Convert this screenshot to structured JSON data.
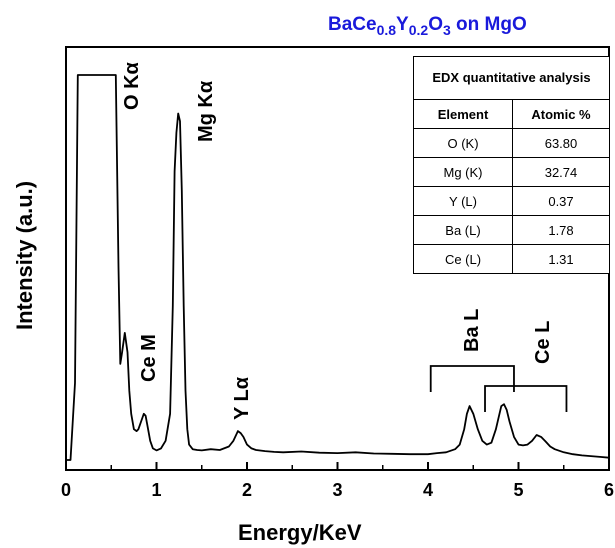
{
  "title_parts": {
    "t1": "BaCe",
    "s1": "0.8",
    "t2": "Y",
    "s2": "0.2",
    "t3": "O",
    "s3": "3",
    "t4": " on MgO"
  },
  "chart_data": {
    "type": "line",
    "title": "BaCe0.8Y0.2O3 on MgO",
    "xlabel": "Energy/KeV",
    "ylabel": "Intensity (a.u.)",
    "xlim": [
      0,
      6
    ],
    "ylim": [
      0,
      100
    ],
    "xticks": [
      "0",
      "1",
      "2",
      "3",
      "4",
      "5",
      "6"
    ],
    "yticks_shown": false,
    "grid": false,
    "series": [
      {
        "x": [
          0.0,
          0.05,
          0.1,
          0.13,
          0.15,
          0.17,
          0.2,
          0.25,
          0.3,
          0.35,
          0.4,
          0.45,
          0.48,
          0.5,
          0.52,
          0.55,
          0.58,
          0.6,
          0.62,
          0.65,
          0.68,
          0.7,
          0.72,
          0.75,
          0.78,
          0.8,
          0.83,
          0.86,
          0.88,
          0.9,
          0.93,
          0.96,
          1.0,
          1.05,
          1.1,
          1.15,
          1.18,
          1.2,
          1.22,
          1.24,
          1.26,
          1.28,
          1.3,
          1.32,
          1.34,
          1.36,
          1.4,
          1.45,
          1.5,
          1.6,
          1.7,
          1.8,
          1.85,
          1.9,
          1.93,
          1.96,
          2.0,
          2.05,
          2.1,
          2.2,
          2.3,
          2.4,
          2.6,
          2.8,
          3.0,
          3.2,
          3.4,
          3.6,
          3.8,
          4.0,
          4.1,
          4.2,
          4.3,
          4.35,
          4.4,
          4.43,
          4.46,
          4.5,
          4.55,
          4.6,
          4.65,
          4.7,
          4.75,
          4.78,
          4.81,
          4.84,
          4.87,
          4.9,
          4.95,
          5.0,
          5.05,
          5.1,
          5.15,
          5.2,
          5.25,
          5.3,
          5.35,
          5.4,
          5.5,
          5.6,
          5.7,
          5.8,
          5.9,
          6.0
        ],
        "y": [
          0,
          0,
          20,
          100,
          100,
          100,
          100,
          100,
          100,
          100,
          100,
          100,
          100,
          100,
          100,
          100,
          50,
          25,
          28,
          33,
          28,
          18,
          12,
          8,
          7.5,
          8,
          10,
          12,
          11.5,
          9,
          5,
          3,
          2.5,
          3,
          5,
          12,
          40,
          75,
          85,
          90,
          88,
          70,
          40,
          18,
          8,
          4,
          2.8,
          2.6,
          2.5,
          2.8,
          2.6,
          3.5,
          5,
          7.5,
          7,
          6,
          4,
          3,
          2.6,
          2.3,
          2.1,
          2.0,
          2.2,
          1.9,
          1.8,
          2.0,
          1.7,
          1.6,
          1.5,
          1.5,
          1.8,
          2.0,
          2.8,
          4,
          8,
          12,
          14,
          12,
          8,
          5,
          4,
          4.5,
          8,
          11,
          14,
          14.5,
          13,
          10,
          6,
          4,
          3.8,
          4,
          5,
          6.5,
          6,
          4.8,
          3.5,
          2.8,
          2.0,
          1.5,
          1.2,
          1.0,
          0.8,
          0.6
        ]
      }
    ],
    "annotations": [
      "O Kα",
      "Mg Kα",
      "Ce M",
      "Y Lα",
      "Ba L",
      "Ce L"
    ],
    "brackets": [
      {
        "label": "Ba L",
        "from": 4.03,
        "to": 4.95
      },
      {
        "label": "Ce L",
        "from": 4.63,
        "to": 5.53
      }
    ]
  },
  "table": {
    "caption": "EDX quantitative analysis",
    "headers": [
      "Element",
      "Atomic %"
    ],
    "rows": [
      {
        "element": "O (K)",
        "value": "63.80"
      },
      {
        "element": "Mg (K)",
        "value": "32.74"
      },
      {
        "element": "Y (L)",
        "value": "0.37"
      },
      {
        "element": "Ba (L)",
        "value": "1.78"
      },
      {
        "element": "Ce (L)",
        "value": "1.31"
      }
    ]
  }
}
